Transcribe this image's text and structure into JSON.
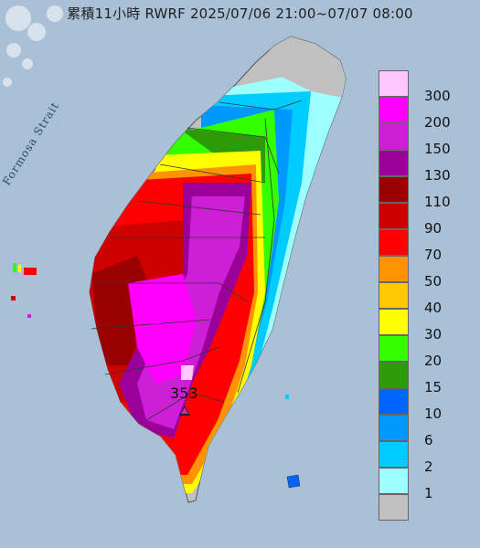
{
  "title": "累積11小時 RWRF 2025/07/06 21:00~07/07 08:00",
  "strait_label": "Formosa Strait",
  "peak": {
    "value_label": "353"
  },
  "legend": {
    "items": [
      {
        "label": "300",
        "color": "#ffc6ff"
      },
      {
        "label": "200",
        "color": "#ff00ff"
      },
      {
        "label": "150",
        "color": "#cc1fd6"
      },
      {
        "label": "130",
        "color": "#9a0099"
      },
      {
        "label": "110",
        "color": "#9a0000"
      },
      {
        "label": "90",
        "color": "#cf0000"
      },
      {
        "label": "70",
        "color": "#ff0000"
      },
      {
        "label": "50",
        "color": "#ff9400"
      },
      {
        "label": "40",
        "color": "#ffc800"
      },
      {
        "label": "30",
        "color": "#ffff00"
      },
      {
        "label": "20",
        "color": "#33ff00"
      },
      {
        "label": "15",
        "color": "#2d9a07"
      },
      {
        "label": "10",
        "color": "#0065ff"
      },
      {
        "label": "6",
        "color": "#0199ff"
      },
      {
        "label": "2",
        "color": "#00ccff"
      },
      {
        "label": "1",
        "color": "#9effff"
      },
      {
        "label": "",
        "color": "#c0c0c0"
      }
    ]
  },
  "colors": {
    "sea": "#aac0d6",
    "land_dry": "#c0c0c0"
  }
}
